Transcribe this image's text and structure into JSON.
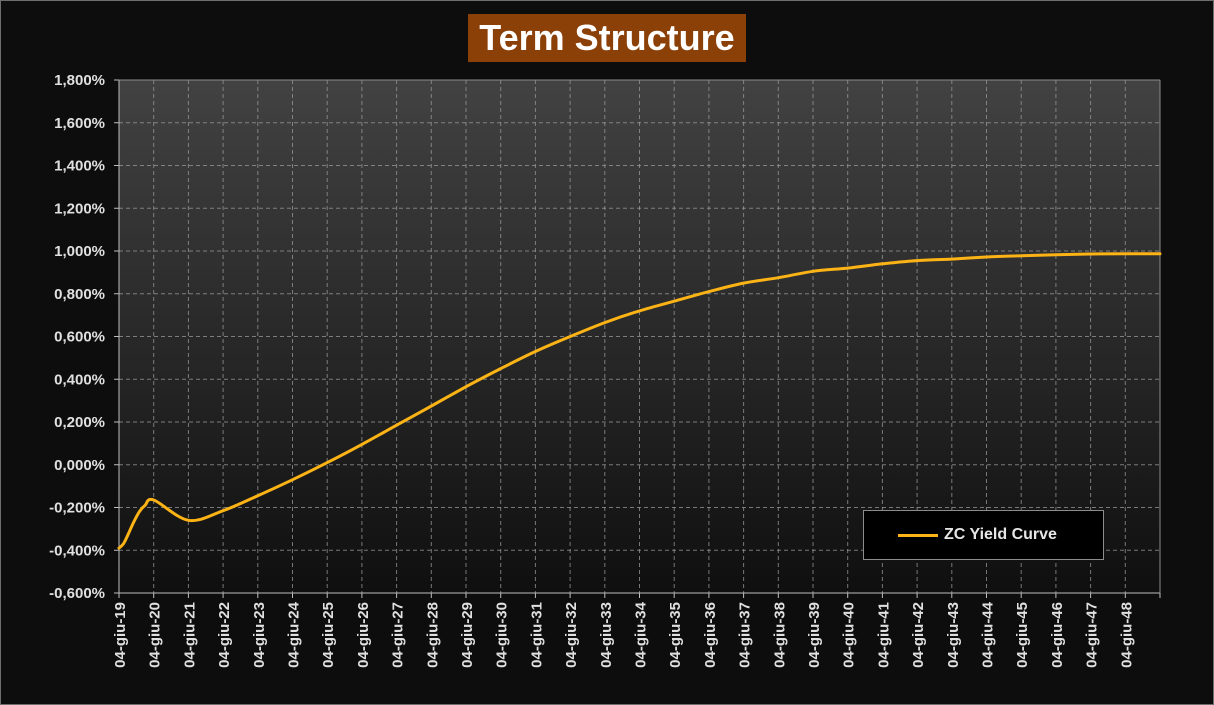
{
  "chart_data": {
    "type": "line",
    "title": "Term Structure",
    "xlabel": "",
    "ylabel": "",
    "ylim": [
      -0.6,
      1.8
    ],
    "y_ticks": [
      "-0,600%",
      "-0,400%",
      "-0,200%",
      "0,000%",
      "0,200%",
      "0,400%",
      "0,600%",
      "0,800%",
      "1,000%",
      "1,200%",
      "1,400%",
      "1,600%",
      "1,800%"
    ],
    "x_ticks": [
      "04-giu-19",
      "04-giu-20",
      "04-giu-21",
      "04-giu-22",
      "04-giu-23",
      "04-giu-24",
      "04-giu-25",
      "04-giu-26",
      "04-giu-27",
      "04-giu-28",
      "04-giu-29",
      "04-giu-30",
      "04-giu-31",
      "04-giu-32",
      "04-giu-33",
      "04-giu-34",
      "04-giu-35",
      "04-giu-36",
      "04-giu-37",
      "04-giu-38",
      "04-giu-39",
      "04-giu-40",
      "04-giu-41",
      "04-giu-42",
      "04-giu-43",
      "04-giu-44",
      "04-giu-45",
      "04-giu-46",
      "04-giu-47",
      "04-giu-48"
    ],
    "xlim": [
      "2019-06-04",
      "2049-06-04"
    ],
    "grid": true,
    "legend_position": "bottom-right",
    "series": [
      {
        "name": "ZC Yield Curve",
        "color": "#fbb315",
        "x": [
          "2019-06-04",
          "2019-07-20",
          "2019-09-04",
          "2019-11-04",
          "2020-01-04",
          "2020-03-04",
          "2020-06-04",
          "2021-06-04",
          "2022-06-04",
          "2023-06-04",
          "2024-06-04",
          "2025-06-04",
          "2026-06-04",
          "2027-06-04",
          "2028-06-04",
          "2029-06-04",
          "2030-06-04",
          "2031-06-04",
          "2032-06-04",
          "2033-06-04",
          "2034-06-04",
          "2035-06-04",
          "2036-06-04",
          "2037-06-04",
          "2038-06-04",
          "2039-06-04",
          "2040-06-04",
          "2041-06-04",
          "2042-06-04",
          "2043-06-04",
          "2044-06-04",
          "2045-06-04",
          "2046-06-04",
          "2047-06-04",
          "2048-06-04",
          "2049-06-04"
        ],
        "y": [
          -0.39,
          -0.37,
          -0.33,
          -0.27,
          -0.22,
          -0.19,
          -0.165,
          -0.26,
          -0.215,
          -0.145,
          -0.07,
          0.01,
          0.095,
          0.185,
          0.275,
          0.365,
          0.45,
          0.53,
          0.6,
          0.665,
          0.72,
          0.765,
          0.81,
          0.85,
          0.875,
          0.905,
          0.92,
          0.94,
          0.955,
          0.962,
          0.972,
          0.978,
          0.982,
          0.986,
          0.987,
          0.987
        ]
      }
    ]
  }
}
